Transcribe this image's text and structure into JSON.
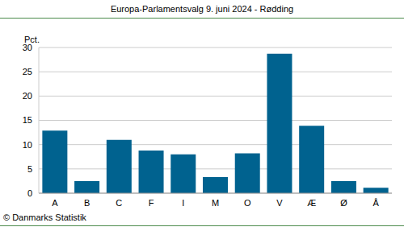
{
  "chart_data": {
    "type": "bar",
    "title": "Europa-Parlamentsvalg 9. juni 2024 - Rødding",
    "y_label": "Pct.",
    "annotation": "© Danmarks Statistik",
    "categories": [
      "A",
      "B",
      "C",
      "F",
      "I",
      "M",
      "O",
      "V",
      "Æ",
      "Ø",
      "Å"
    ],
    "values": [
      12.9,
      2.5,
      11.0,
      8.8,
      8.0,
      3.3,
      8.2,
      28.7,
      13.9,
      2.5,
      1.1
    ],
    "color": "#00628f",
    "ylim": [
      0,
      30
    ],
    "yticks": [
      0,
      5,
      10,
      15,
      20,
      25,
      30
    ],
    "grid": true
  }
}
